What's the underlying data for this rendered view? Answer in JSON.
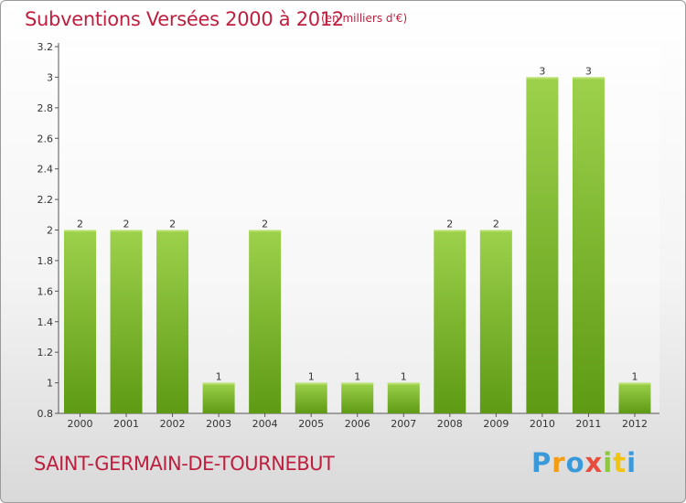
{
  "title": "Subventions Versées 2000 à 2012",
  "unit": "(en milliers d'€)",
  "commune": "SAINT-GERMAIN-DE-TOURNEBUT",
  "logo": {
    "letters": [
      "P",
      "r",
      "o",
      "x",
      "i",
      "t",
      "i"
    ],
    "colors": [
      "#3a9ad9",
      "#f39c12",
      "#3a9ad9",
      "#e74c3c",
      "#8dc63f",
      "#f1c40f",
      "#3a9ad9"
    ]
  },
  "colors": {
    "accent": "#bf1f3e",
    "bar_top": "#9dd14c",
    "bar_bottom": "#5e9a14"
  },
  "chart_data": {
    "type": "bar",
    "title": "Subventions Versées 2000 à 2012",
    "categories": [
      "2000",
      "2001",
      "2002",
      "2003",
      "2004",
      "2005",
      "2006",
      "2007",
      "2008",
      "2009",
      "2010",
      "2011",
      "2012"
    ],
    "values": [
      2,
      2,
      2,
      1,
      2,
      1,
      1,
      1,
      2,
      2,
      3,
      3,
      1
    ],
    "ylim": [
      0.8,
      3.2
    ],
    "yticks": [
      "0.8",
      "1",
      "1.2",
      "1.4",
      "1.6",
      "1.8",
      "2",
      "2.2",
      "2.4",
      "2.6",
      "2.8",
      "3",
      "3.2"
    ],
    "grid": false,
    "xlabel": "",
    "ylabel": ""
  }
}
